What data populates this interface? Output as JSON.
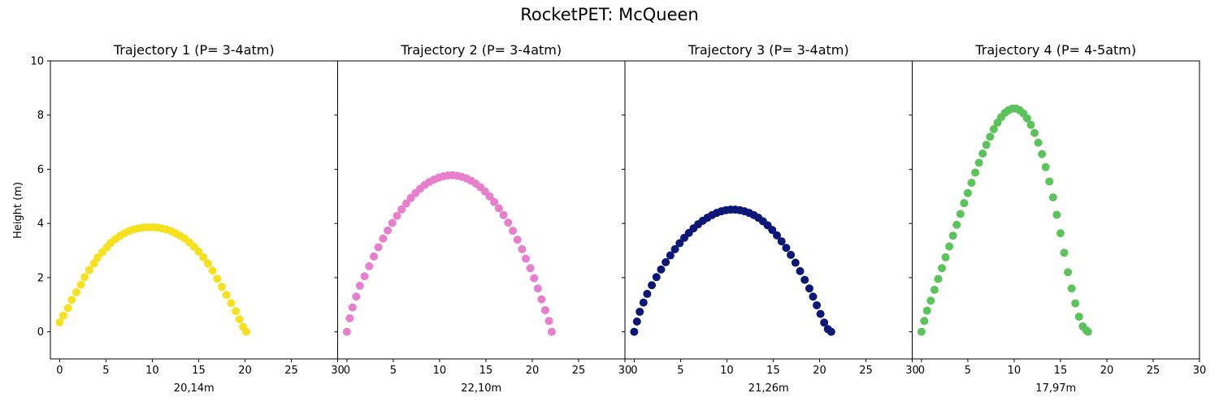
{
  "figure": {
    "suptitle": "RocketPET: McQueen",
    "ylabel": "Height (m)"
  },
  "chart_data": [
    {
      "type": "scatter",
      "title": "Trajectory 1 (P= 3-4atm)",
      "xlabel": "20,14m",
      "ylabel": "Height (m)",
      "xlim": [
        -1,
        30
      ],
      "ylim": [
        -1,
        10
      ],
      "xticks": [
        0,
        5,
        10,
        15,
        20,
        25,
        30
      ],
      "yticks": [
        0,
        2,
        4,
        6,
        8,
        10
      ],
      "color": "#f5e11e",
      "series": [
        {
          "x": [
            0.0,
            0.4,
            0.9,
            1.3,
            1.8,
            2.3,
            2.7,
            3.2,
            3.7,
            4.1,
            4.6,
            5.1,
            5.5,
            6.0,
            6.5,
            7.0,
            7.5,
            8.0,
            8.5,
            9.0,
            9.5,
            10.0,
            10.5,
            11.0,
            11.5,
            12.0,
            12.5,
            13.0,
            13.5,
            14.0,
            14.5,
            15.0,
            15.5,
            16.0,
            16.5,
            17.0,
            17.5,
            18.0,
            18.5,
            19.0,
            19.4,
            19.8,
            20.14
          ],
          "y": [
            0.35,
            0.6,
            0.88,
            1.18,
            1.46,
            1.74,
            2.02,
            2.28,
            2.52,
            2.74,
            2.94,
            3.12,
            3.28,
            3.42,
            3.54,
            3.64,
            3.72,
            3.78,
            3.82,
            3.85,
            3.86,
            3.86,
            3.85,
            3.82,
            3.78,
            3.72,
            3.64,
            3.55,
            3.44,
            3.3,
            3.14,
            2.96,
            2.75,
            2.52,
            2.26,
            1.96,
            1.66,
            1.36,
            1.06,
            0.76,
            0.46,
            0.18,
            0.0
          ]
        }
      ]
    },
    {
      "type": "scatter",
      "title": "Trajectory 2 (P= 3-4atm)",
      "xlabel": "22,10m",
      "ylabel": "",
      "xlim": [
        -1,
        30
      ],
      "ylim": [
        -1,
        10
      ],
      "xticks": [
        0,
        5,
        10,
        15,
        20,
        25,
        30
      ],
      "yticks": [
        0,
        2,
        4,
        6,
        8,
        10
      ],
      "color": "#e87fcd",
      "series": [
        {
          "x": [
            0.0,
            0.3,
            0.6,
            1.0,
            1.4,
            1.9,
            2.4,
            2.9,
            3.4,
            3.9,
            4.4,
            4.9,
            5.4,
            5.9,
            6.4,
            6.9,
            7.4,
            7.9,
            8.4,
            8.9,
            9.4,
            9.9,
            10.4,
            10.9,
            11.4,
            11.9,
            12.4,
            12.9,
            13.4,
            13.9,
            14.4,
            14.9,
            15.4,
            15.9,
            16.4,
            16.9,
            17.4,
            17.9,
            18.4,
            18.9,
            19.3,
            19.8,
            20.2,
            20.6,
            21.0,
            21.4,
            21.8,
            22.1
          ],
          "y": [
            0.0,
            0.5,
            0.9,
            1.3,
            1.7,
            2.05,
            2.42,
            2.78,
            3.12,
            3.44,
            3.74,
            4.02,
            4.28,
            4.52,
            4.74,
            4.94,
            5.12,
            5.28,
            5.42,
            5.53,
            5.62,
            5.69,
            5.74,
            5.77,
            5.78,
            5.76,
            5.72,
            5.66,
            5.58,
            5.47,
            5.34,
            5.18,
            5.0,
            4.79,
            4.56,
            4.31,
            4.03,
            3.73,
            3.4,
            3.05,
            2.7,
            2.35,
            1.98,
            1.6,
            1.2,
            0.8,
            0.4,
            0.0
          ]
        }
      ]
    },
    {
      "type": "scatter",
      "title": "Trajectory 3 (P= 3-4atm)",
      "xlabel": "21,26m",
      "ylabel": "",
      "xlim": [
        -1,
        30
      ],
      "ylim": [
        -1,
        10
      ],
      "xticks": [
        0,
        5,
        10,
        15,
        20,
        25,
        30
      ],
      "yticks": [
        0,
        2,
        4,
        6,
        8,
        10
      ],
      "color": "#0c1778",
      "series": [
        {
          "x": [
            0.0,
            0.3,
            0.6,
            1.0,
            1.4,
            1.9,
            2.4,
            2.9,
            3.4,
            3.9,
            4.4,
            4.9,
            5.4,
            5.9,
            6.4,
            6.9,
            7.4,
            7.9,
            8.4,
            8.9,
            9.4,
            9.9,
            10.4,
            10.9,
            11.4,
            11.9,
            12.4,
            12.9,
            13.4,
            13.9,
            14.4,
            14.9,
            15.4,
            15.9,
            16.4,
            16.9,
            17.4,
            17.9,
            18.4,
            18.9,
            19.3,
            19.7,
            20.1,
            20.5,
            20.9,
            21.26
          ],
          "y": [
            0.0,
            0.38,
            0.74,
            1.08,
            1.4,
            1.72,
            2.02,
            2.3,
            2.57,
            2.82,
            3.05,
            3.27,
            3.47,
            3.65,
            3.82,
            3.97,
            4.1,
            4.21,
            4.31,
            4.39,
            4.45,
            4.49,
            4.51,
            4.51,
            4.49,
            4.45,
            4.39,
            4.31,
            4.21,
            4.08,
            3.93,
            3.76,
            3.56,
            3.34,
            3.1,
            2.84,
            2.55,
            2.24,
            1.92,
            1.6,
            1.3,
            0.98,
            0.66,
            0.34,
            0.1,
            0.0
          ]
        }
      ]
    },
    {
      "type": "scatter",
      "title": "Trajectory 4 (P= 4-5atm)",
      "xlabel": "17,97m",
      "ylabel": "",
      "xlim": [
        -1,
        30
      ],
      "ylim": [
        -1,
        10
      ],
      "xticks": [
        0,
        5,
        10,
        15,
        20,
        25,
        30
      ],
      "yticks": [
        0,
        2,
        4,
        6,
        8,
        10
      ],
      "color": "#5ac35a",
      "series": [
        {
          "x": [
            0.0,
            0.3,
            0.6,
            1.0,
            1.4,
            1.8,
            2.2,
            2.6,
            3.0,
            3.4,
            3.8,
            4.2,
            4.6,
            5.0,
            5.4,
            5.8,
            6.2,
            6.6,
            7.0,
            7.4,
            7.8,
            8.2,
            8.6,
            9.0,
            9.4,
            9.8,
            10.2,
            10.6,
            11.0,
            11.4,
            11.8,
            12.2,
            12.6,
            13.0,
            13.4,
            13.8,
            14.2,
            14.6,
            15.0,
            15.4,
            15.8,
            16.2,
            16.6,
            17.0,
            17.4,
            17.8,
            17.97
          ],
          "y": [
            0.0,
            0.4,
            0.78,
            1.15,
            1.55,
            1.95,
            2.35,
            2.75,
            3.15,
            3.55,
            3.95,
            4.35,
            4.75,
            5.12,
            5.5,
            5.88,
            6.24,
            6.58,
            6.9,
            7.2,
            7.48,
            7.72,
            7.92,
            8.08,
            8.18,
            8.24,
            8.24,
            8.18,
            8.06,
            7.88,
            7.64,
            7.34,
            6.98,
            6.56,
            6.08,
            5.55,
            4.96,
            4.32,
            3.64,
            2.92,
            2.2,
            1.6,
            1.05,
            0.56,
            0.2,
            0.05,
            0.0
          ]
        }
      ]
    }
  ]
}
